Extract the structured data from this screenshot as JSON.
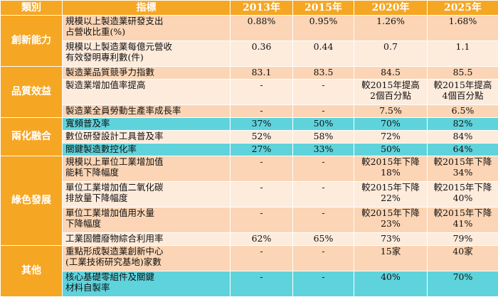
{
  "headers": [
    "類別",
    "指標",
    "2013年",
    "2015年",
    "2020年",
    "2025年"
  ],
  "categories": {
    "innovation": "創新能力",
    "quality": "品質效益",
    "integration": "兩化融合",
    "green": "綠色發展",
    "other": "其他"
  },
  "rows": [
    {
      "indicator": "規模以上製造業研發支出\n占營收比重(%)",
      "y2013": "0.88%",
      "y2015": "0.95%",
      "y2020": "1.26%",
      "y2025": "1.68%"
    },
    {
      "indicator": "規模以上製造業每億元營收\n有效發明專利數(件)",
      "y2013": "0.36",
      "y2015": "0.44",
      "y2020": "0.7",
      "y2025": "1.1"
    },
    {
      "indicator": "製造業品質競爭力指數",
      "y2013": "83.1",
      "y2015": "83.5",
      "y2020": "84.5",
      "y2025": "85.5"
    },
    {
      "indicator": "製造業增加值率提高",
      "y2013": "-",
      "y2015": "-",
      "y2020": "較2015年提高\n2個百分點",
      "y2025": "較2015年提高\n4個百分點"
    },
    {
      "indicator": "製造業全員勞動生產率成長率",
      "y2013": "-",
      "y2015": "-",
      "y2020": "7.5%",
      "y2025": "6.5%"
    },
    {
      "indicator": "寬頻普及率",
      "y2013": "37%",
      "y2015": "50%",
      "y2020": "70%",
      "y2025": "82%"
    },
    {
      "indicator": "數位研發設計工具普及率",
      "y2013": "52%",
      "y2015": "58%",
      "y2020": "72%",
      "y2025": "84%"
    },
    {
      "indicator": "關鍵製造數控化率",
      "y2013": "27%",
      "y2015": "33%",
      "y2020": "50%",
      "y2025": "64%"
    },
    {
      "indicator": "規模以上單位工業增加值\n能耗下降幅度",
      "y2013": "-",
      "y2015": "-",
      "y2020": "較2015年下降\n18%",
      "y2025": "較2015年下降34%"
    },
    {
      "indicator": "單位工業增加值二氧化碳\n排放量下降幅度",
      "y2013": "-",
      "y2015": "-",
      "y2020": "較2015年下降\n22%",
      "y2025": "較2015年下降40%"
    },
    {
      "indicator": "單位工業增加值用水量\n下降幅度",
      "y2013": "-",
      "y2015": "-",
      "y2020": "較2015年下降\n23%",
      "y2025": "較2015年下降41%"
    },
    {
      "indicator": "工業固體廢物綜合利用率",
      "y2013": "62%",
      "y2015": "65%",
      "y2020": "73%",
      "y2025": "79%"
    },
    {
      "indicator": "重點形成製造業創新中心\n(工業技術研究基地)家數",
      "y2013": "-",
      "y2015": "-",
      "y2020": "15家",
      "y2025": "40家"
    },
    {
      "indicator": "核心基礎零組件及關鍵\n材料自製率",
      "y2013": "-",
      "y2015": "-",
      "y2020": "40%",
      "y2025": "70%"
    }
  ],
  "colors": {
    "header": "#f5a623",
    "row_dark": "#fbd5b5",
    "row_light": "#fdebdc",
    "highlight": "#5fd3dc"
  }
}
